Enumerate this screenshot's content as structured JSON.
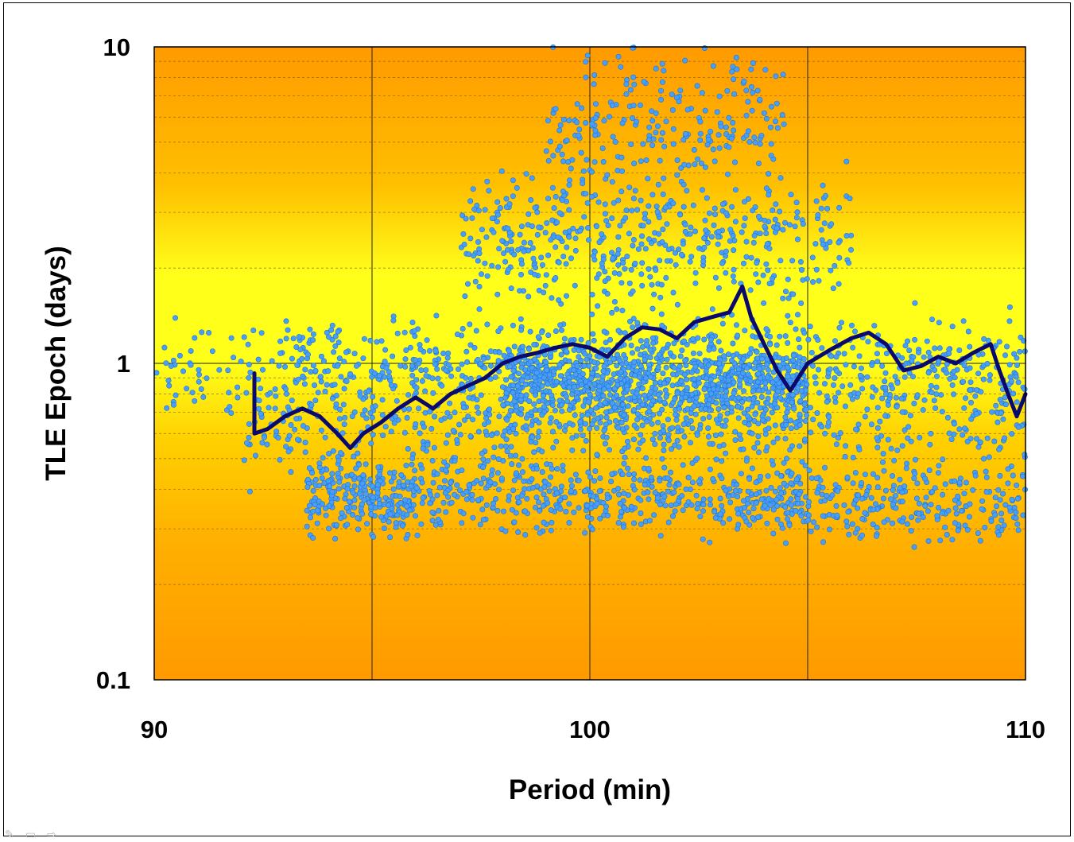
{
  "chart_data": {
    "type": "scatter",
    "xlabel": "Period (min)",
    "ylabel": "TLE Epoch (days)",
    "xlim": [
      90,
      110
    ],
    "ylim": [
      0.1,
      10
    ],
    "yscale": "log",
    "x_ticks": [
      90,
      100,
      110
    ],
    "x_tick_labels": [
      "90",
      "100",
      "110"
    ],
    "y_ticks": [
      0.1,
      1,
      10
    ],
    "y_tick_labels": [
      "0.1",
      "1",
      "10"
    ],
    "vertical_gridlines": [
      95,
      100,
      105
    ],
    "minor_horizontal_gridlines": true,
    "background": "orange-yellow vertical gradient (yellow near 1 day)",
    "scatter_color": "#4a9ff5",
    "scatter_edge_color": "#1e73d8",
    "line_color": "#0a0a6e",
    "scatter_clusters": [
      {
        "x_range": [
          93.5,
          96.0
        ],
        "y_center": 0.38,
        "count": 250
      },
      {
        "x_range": [
          96.0,
          105.0
        ],
        "y_center": 0.38,
        "count": 500
      },
      {
        "x_range": [
          105.0,
          110.0
        ],
        "y_center": 0.36,
        "count": 220
      },
      {
        "x_range": [
          92.0,
          110.0
        ],
        "y_center": 0.6,
        "count": 450
      },
      {
        "x_range": [
          93.0,
          110.0
        ],
        "y_center": 1.0,
        "count": 500
      },
      {
        "x_range": [
          98.0,
          105.0
        ],
        "y_center": 0.85,
        "count": 900
      },
      {
        "x_range": [
          97.0,
          106.0
        ],
        "y_center": 2.5,
        "count": 500
      },
      {
        "x_range": [
          99.0,
          104.5
        ],
        "y_center": 6.0,
        "count": 220
      },
      {
        "x_range": [
          90.0,
          110.0
        ],
        "y_center": 0.9,
        "count": 400
      }
    ],
    "series": [
      {
        "type": "line",
        "x": [
          92.3,
          92.3,
          92.6,
          93.0,
          93.4,
          93.8,
          94.2,
          94.5,
          94.8,
          95.2,
          95.6,
          96.0,
          96.4,
          96.8,
          97.2,
          97.6,
          98.0,
          98.4,
          98.8,
          99.2,
          99.6,
          100.0,
          100.4,
          100.8,
          101.2,
          101.6,
          102.0,
          102.4,
          102.8,
          103.2,
          103.5,
          103.7,
          104.0,
          104.3,
          104.6,
          105.0,
          105.5,
          106.0,
          106.4,
          106.8,
          107.2,
          107.6,
          108.0,
          108.4,
          108.8,
          109.2,
          109.4,
          109.6,
          109.8,
          110.0
        ],
        "y": [
          0.93,
          0.6,
          0.62,
          0.68,
          0.72,
          0.68,
          0.6,
          0.54,
          0.6,
          0.65,
          0.72,
          0.78,
          0.72,
          0.8,
          0.85,
          0.9,
          1.0,
          1.05,
          1.08,
          1.12,
          1.15,
          1.12,
          1.05,
          1.2,
          1.3,
          1.28,
          1.2,
          1.35,
          1.4,
          1.45,
          1.75,
          1.4,
          1.15,
          0.95,
          0.82,
          1.0,
          1.1,
          1.2,
          1.25,
          1.15,
          0.95,
          0.98,
          1.05,
          1.0,
          1.08,
          1.15,
          0.95,
          0.8,
          0.68,
          0.8
        ]
      }
    ]
  }
}
